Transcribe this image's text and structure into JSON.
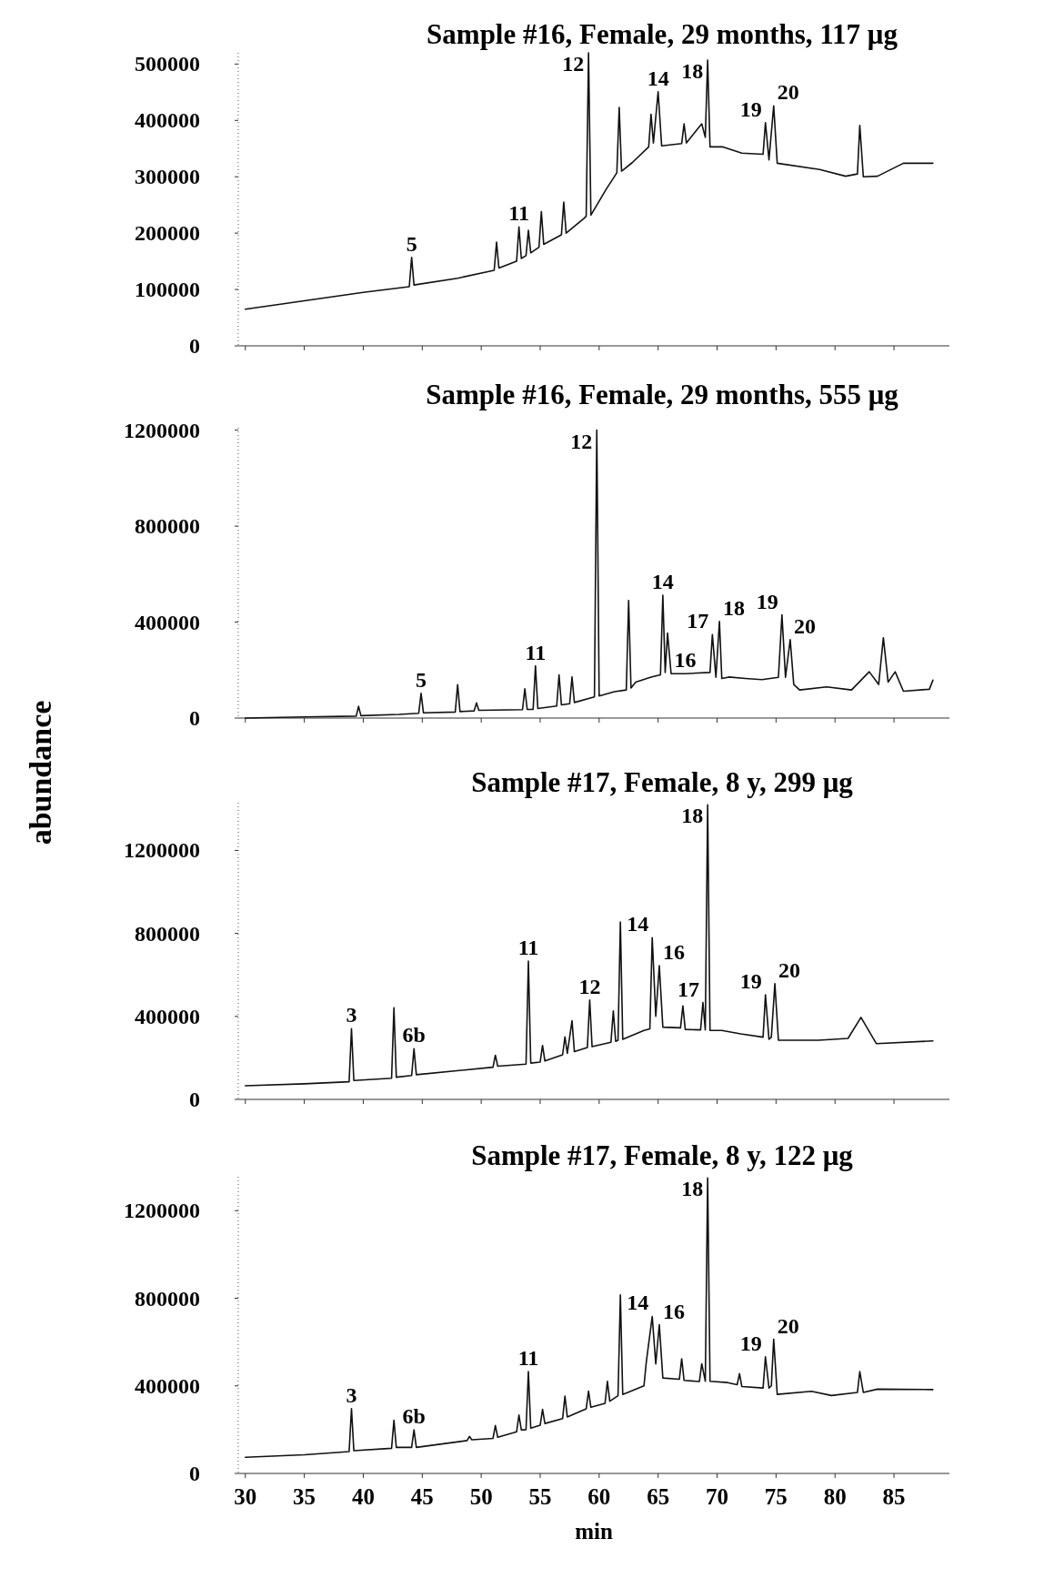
{
  "chart_data": [
    {
      "type": "line",
      "title": "Sample #16, Female, 29 months, 117 μg",
      "color": "#111111",
      "xlim": [
        29.4,
        89.7
      ],
      "ylim": [
        0,
        520000
      ],
      "xticks": [
        30,
        35,
        40,
        45,
        50,
        55,
        60,
        65,
        70,
        75,
        80,
        85
      ],
      "yticks": [
        0,
        100000,
        200000,
        300000,
        400000,
        500000
      ],
      "tick_labels": "y",
      "x": [
        30,
        35,
        40,
        43.9,
        44.1,
        44.3,
        48,
        51.1,
        51.3,
        51.5,
        53,
        53.2,
        53.4,
        53.8,
        54.0,
        54.2,
        54.9,
        55.1,
        55.3,
        56.8,
        57.0,
        57.2,
        58.7,
        58.9,
        59.1,
        59.3,
        60.6,
        61.5,
        61.7,
        61.9,
        62.8,
        64.2,
        64.4,
        64.6,
        65.0,
        65.3,
        67.0,
        67.2,
        67.4,
        68.7,
        69.0,
        69.2,
        69.4,
        70.5,
        72.1,
        73.9,
        74.1,
        74.4,
        74.8,
        75.1,
        78.7,
        80.9,
        81.9,
        82.1,
        82.4,
        83.6,
        85.8,
        88.3
      ],
      "values": [
        65000,
        80000,
        95000,
        105000,
        157000,
        108000,
        120000,
        134000,
        184000,
        138000,
        150000,
        211000,
        155000,
        160000,
        205000,
        165000,
        175000,
        238000,
        180000,
        197000,
        255000,
        200000,
        226000,
        230000,
        520000,
        232000,
        278000,
        307000,
        423000,
        310000,
        325000,
        353000,
        411000,
        360000,
        451000,
        355000,
        359000,
        394000,
        360000,
        394000,
        370000,
        507000,
        353000,
        353000,
        342000,
        340000,
        396000,
        330000,
        426000,
        324000,
        313000,
        301000,
        305000,
        391000,
        300000,
        301000,
        324000,
        324000
      ],
      "annotations": [
        {
          "text": "5",
          "x": 44.1,
          "y": 157000
        },
        {
          "text": "11",
          "x": 53.2,
          "y": 211000
        },
        {
          "text": "12",
          "x": 59.1,
          "y": 520000
        },
        {
          "text": "14",
          "x": 65.0,
          "y": 451000
        },
        {
          "text": "18",
          "x": 69.2,
          "y": 507000
        },
        {
          "text": "19",
          "x": 74.1,
          "y": 396000
        },
        {
          "text": "20",
          "x": 74.8,
          "y": 426000
        }
      ]
    },
    {
      "type": "line",
      "title": "Sample #16, Female, 29 months, 555 μg",
      "ylabel": "abundance",
      "color": "#111111",
      "xlim": [
        29.4,
        89.7
      ],
      "ylim": [
        0,
        1210000
      ],
      "xticks": [
        30,
        35,
        40,
        45,
        50,
        55,
        60,
        65,
        70,
        75,
        80,
        85
      ],
      "yticks": [
        0,
        400000,
        800000,
        1200000
      ],
      "tick_labels": "y",
      "x": [
        30,
        35,
        39.4,
        39.6,
        39.8,
        43,
        44.7,
        44.9,
        45.1,
        47.8,
        48.0,
        48.2,
        49.4,
        49.6,
        49.8,
        53.5,
        53.7,
        53.9,
        54.4,
        54.6,
        54.8,
        56.4,
        56.6,
        56.8,
        57.5,
        57.7,
        57.9,
        59.6,
        59.8,
        60.0,
        61.3,
        62.3,
        62.5,
        62.7,
        63.1,
        64.4,
        65.2,
        65.4,
        65.6,
        65.8,
        66.1,
        67.3,
        69.4,
        69.6,
        69.9,
        70.2,
        70.4,
        71.0,
        72.4,
        73.8,
        75.2,
        75.5,
        75.8,
        76.2,
        76.5,
        77.0,
        79.3,
        81.4,
        82.9,
        83.7,
        84.1,
        84.5,
        85.1,
        85.8,
        88.0,
        88.3
      ],
      "values": [
        0,
        5000,
        8000,
        49000,
        10000,
        15000,
        20000,
        103000,
        22000,
        25000,
        139000,
        27000,
        30000,
        63000,
        32000,
        35000,
        122000,
        36000,
        36000,
        218000,
        40000,
        50000,
        180000,
        55000,
        60000,
        171000,
        65000,
        88000,
        1200000,
        92000,
        110000,
        117000,
        490000,
        125000,
        150000,
        171000,
        180000,
        512000,
        190000,
        354000,
        185000,
        185000,
        190000,
        348000,
        170000,
        403000,
        165000,
        171000,
        165000,
        160000,
        170000,
        430000,
        170000,
        327000,
        140000,
        117000,
        130000,
        117000,
        193000,
        140000,
        335000,
        150000,
        193000,
        112000,
        120000,
        158000
      ],
      "annotations": [
        {
          "text": "5",
          "x": 44.9,
          "y": 103000
        },
        {
          "text": "11",
          "x": 54.6,
          "y": 218000
        },
        {
          "text": "12",
          "x": 59.8,
          "y": 1200000
        },
        {
          "text": "14",
          "x": 65.4,
          "y": 512000
        },
        {
          "text": "16",
          "x": 67.3,
          "y": 185000
        },
        {
          "text": "17",
          "x": 69.6,
          "y": 348000
        },
        {
          "text": "18",
          "x": 70.2,
          "y": 403000
        },
        {
          "text": "19",
          "x": 75.5,
          "y": 430000
        },
        {
          "text": "20",
          "x": 76.2,
          "y": 327000
        }
      ]
    },
    {
      "type": "line",
      "title": "Sample #17, Female, 8 y, 299 μg",
      "color": "#111111",
      "xlim": [
        29.4,
        89.7
      ],
      "ylim": [
        0,
        1430000
      ],
      "xticks": [
        30,
        35,
        40,
        45,
        50,
        55,
        60,
        65,
        70,
        75,
        80,
        85
      ],
      "yticks": [
        0,
        400000,
        800000,
        1200000
      ],
      "tick_labels": "y",
      "x": [
        30,
        35,
        38.8,
        39.0,
        39.2,
        42.4,
        42.6,
        42.8,
        44.1,
        44.3,
        44.5,
        51.0,
        51.2,
        51.4,
        53.8,
        54.0,
        54.2,
        55.0,
        55.2,
        55.4,
        56.9,
        57.1,
        57.3,
        57.7,
        57.9,
        59.0,
        59.2,
        59.4,
        61.0,
        61.2,
        61.4,
        61.6,
        61.8,
        62.0,
        63.8,
        64.3,
        64.5,
        64.8,
        65.1,
        65.4,
        66.9,
        67.1,
        67.3,
        68.6,
        68.8,
        69.0,
        69.2,
        69.4,
        70.4,
        72.0,
        73.9,
        74.1,
        74.4,
        74.6,
        74.9,
        75.2,
        78.6,
        81.1,
        82.2,
        83.5,
        88.3
      ],
      "values": [
        66000,
        75000,
        85000,
        341000,
        91000,
        102000,
        442000,
        107000,
        115000,
        244000,
        119000,
        155000,
        213000,
        160000,
        170000,
        667000,
        175000,
        180000,
        260000,
        185000,
        215000,
        301000,
        222000,
        379000,
        230000,
        250000,
        479000,
        254000,
        275000,
        426000,
        280000,
        285000,
        855000,
        290000,
        332000,
        340000,
        780000,
        400000,
        645000,
        348000,
        345000,
        451000,
        337000,
        335000,
        467000,
        335000,
        1420000,
        332000,
        332000,
        316000,
        300000,
        504000,
        290000,
        300000,
        558000,
        285000,
        285000,
        294000,
        395000,
        269000,
        282000
      ],
      "annotations": [
        {
          "text": "3",
          "x": 39.0,
          "y": 341000
        },
        {
          "text": "6b",
          "x": 44.3,
          "y": 244000
        },
        {
          "text": "11",
          "x": 54.0,
          "y": 667000
        },
        {
          "text": "12",
          "x": 59.2,
          "y": 479000
        },
        {
          "text": "14",
          "x": 64.5,
          "y": 780000
        },
        {
          "text": "16",
          "x": 65.1,
          "y": 645000
        },
        {
          "text": "17",
          "x": 68.8,
          "y": 467000
        },
        {
          "text": "18",
          "x": 69.2,
          "y": 1420000
        },
        {
          "text": "19",
          "x": 74.1,
          "y": 504000
        },
        {
          "text": "20",
          "x": 74.9,
          "y": 558000
        }
      ]
    },
    {
      "type": "line",
      "title": "Sample #17, Female, 8 y, 122 μg",
      "xlabel": "min",
      "color": "#111111",
      "xlim": [
        29.4,
        89.7
      ],
      "ylim": [
        0,
        1355000
      ],
      "xticks": [
        30,
        35,
        40,
        45,
        50,
        55,
        60,
        65,
        70,
        75,
        80,
        85
      ],
      "yticks": [
        0,
        400000,
        800000,
        1200000
      ],
      "x": [
        30,
        35,
        38.8,
        39.0,
        39.2,
        42.4,
        42.6,
        42.8,
        44.1,
        44.3,
        44.5,
        48.8,
        49.0,
        49.2,
        51.0,
        51.2,
        51.4,
        53.0,
        53.2,
        53.4,
        53.8,
        54.0,
        54.2,
        55.0,
        55.2,
        55.4,
        56.9,
        57.1,
        57.3,
        58.9,
        59.1,
        59.3,
        60.5,
        60.7,
        60.9,
        61.6,
        61.8,
        62.0,
        63.8,
        64.0,
        64.5,
        64.8,
        65.1,
        65.4,
        66.8,
        67.0,
        67.2,
        68.5,
        68.7,
        69.0,
        69.2,
        69.4,
        70.9,
        71.7,
        71.9,
        72.1,
        73.9,
        74.1,
        74.4,
        74.6,
        74.8,
        75.1,
        78.0,
        79.7,
        81.9,
        82.1,
        82.4,
        83.6,
        88.3
      ],
      "values": [
        74000,
        85000,
        100000,
        296000,
        104000,
        115000,
        243000,
        119000,
        119000,
        199000,
        119000,
        150000,
        169000,
        154000,
        160000,
        219000,
        165000,
        190000,
        267000,
        199000,
        200000,
        465000,
        207000,
        220000,
        293000,
        228000,
        250000,
        353000,
        258000,
        295000,
        376000,
        302000,
        320000,
        421000,
        330000,
        355000,
        815000,
        361000,
        400000,
        510000,
        717000,
        500000,
        679000,
        436000,
        430000,
        524000,
        425000,
        420000,
        501000,
        421000,
        1350000,
        421000,
        415000,
        405000,
        456000,
        397000,
        390000,
        533000,
        390000,
        400000,
        613000,
        361000,
        375000,
        356000,
        370000,
        465000,
        370000,
        385000,
        383000
      ],
      "annotations": [
        {
          "text": "3",
          "x": 39.0,
          "y": 296000
        },
        {
          "text": "6b",
          "x": 44.3,
          "y": 199000
        },
        {
          "text": "11",
          "x": 54.0,
          "y": 465000
        },
        {
          "text": "14",
          "x": 64.5,
          "y": 717000
        },
        {
          "text": "16",
          "x": 65.1,
          "y": 679000
        },
        {
          "text": "18",
          "x": 69.2,
          "y": 1350000
        },
        {
          "text": "19",
          "x": 74.1,
          "y": 533000
        },
        {
          "text": "20",
          "x": 74.8,
          "y": 613000
        }
      ]
    }
  ]
}
